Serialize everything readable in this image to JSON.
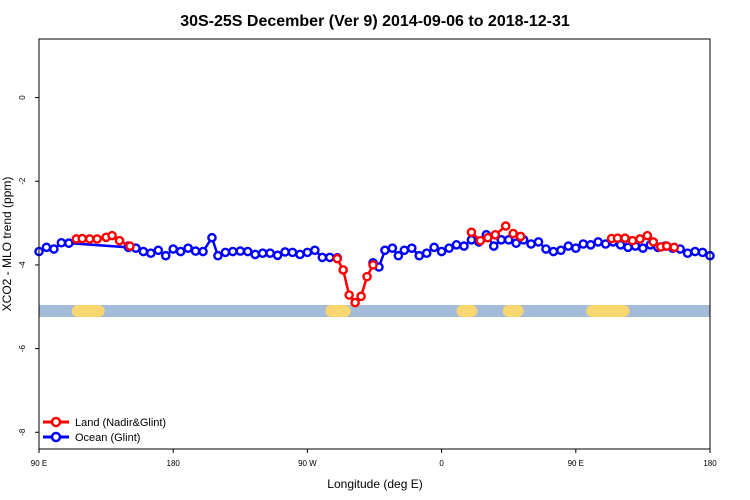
{
  "chart_data": {
    "type": "line",
    "title": "30S-25S December (Ver 9)   2014-09-06 to 2018-12-31",
    "xlabel": "Longitude (deg E)",
    "ylabel": "XCO2 - MLO trend (ppm)",
    "x_ticks": [
      {
        "value": 90,
        "label": "90 E"
      },
      {
        "value": 180,
        "label": "180"
      },
      {
        "value": 270,
        "label": "90 W"
      },
      {
        "value": 360,
        "label": "0"
      },
      {
        "value": 450,
        "label": "90 E"
      },
      {
        "value": 540,
        "label": "180"
      }
    ],
    "y_ticks": [
      {
        "value": 0,
        "label": "0"
      },
      {
        "value": -2,
        "label": "-2"
      },
      {
        "value": -4,
        "label": "-4"
      },
      {
        "value": -6,
        "label": "-6"
      },
      {
        "value": -8,
        "label": "-8"
      }
    ],
    "xlim": [
      90,
      540
    ],
    "ylim": [
      -8.4,
      1.4
    ],
    "grid": false,
    "legend_position": "bottom-left",
    "colors": {
      "land": "#ff0000",
      "ocean": "#0000ff",
      "band_ocean": "#a4bbd9",
      "band_land": "#f9d66f"
    },
    "band": {
      "y": -5.1,
      "land_segments": [
        [
          116,
          130
        ],
        [
          286,
          295
        ],
        [
          374,
          380
        ],
        [
          405,
          411
        ],
        [
          461,
          482
        ]
      ]
    },
    "series": [
      {
        "name": "Land (Nadir&Glint)",
        "segments": [
          {
            "x": [
              115,
              119,
              124,
              129,
              135,
              139,
              144,
              151
            ],
            "y": [
              -3.38,
              -3.37,
              -3.38,
              -3.38,
              -3.34,
              -3.3,
              -3.42,
              -3.55
            ]
          },
          {
            "x": [
              290,
              294,
              298,
              302,
              306,
              310,
              314
            ],
            "y": [
              -3.85,
              -4.12,
              -4.72,
              -4.9,
              -4.75,
              -4.28,
              -4.0
            ]
          },
          {
            "x": [
              380,
              386,
              391,
              396,
              403
            ],
            "y": [
              -3.22,
              -3.42,
              -3.35,
              -3.28,
              -3.07
            ]
          },
          {
            "x": [
              408,
              413
            ],
            "y": [
              -3.25,
              -3.32
            ]
          },
          {
            "x": [
              474,
              478,
              483,
              488,
              493,
              498,
              502,
              507,
              511,
              516
            ],
            "y": [
              -3.37,
              -3.36,
              -3.36,
              -3.42,
              -3.38,
              -3.3,
              -3.45,
              -3.57,
              -3.55,
              -3.58
            ]
          }
        ]
      },
      {
        "name": "Ocean (Glint)",
        "segments": [
          {
            "x": [
              90,
              95,
              100,
              105,
              110
            ],
            "y": [
              -3.68,
              -3.58,
              -3.62,
              -3.47,
              -3.48
            ]
          },
          {
            "x": [
              110,
              150
            ],
            "y": [
              -3.48,
              -3.58
            ]
          },
          {
            "x": [
              150,
              155,
              160,
              165,
              170,
              175,
              180,
              185,
              190,
              195,
              200,
              206,
              210,
              215,
              220,
              225,
              230,
              235,
              240,
              245,
              250,
              255,
              260,
              265,
              270,
              275,
              280,
              285,
              290
            ],
            "y": [
              -3.55,
              -3.6,
              -3.68,
              -3.72,
              -3.65,
              -3.78,
              -3.62,
              -3.68,
              -3.6,
              -3.67,
              -3.68,
              -3.35,
              -3.78,
              -3.7,
              -3.68,
              -3.67,
              -3.68,
              -3.75,
              -3.72,
              -3.72,
              -3.77,
              -3.69,
              -3.7,
              -3.75,
              -3.7,
              -3.65,
              -3.82,
              -3.82,
              -3.83
            ]
          },
          {
            "x": [
              314,
              318,
              322,
              327,
              331,
              335,
              340,
              345,
              350,
              355,
              360,
              365,
              370,
              375,
              380,
              385,
              390,
              395,
              400,
              405,
              410,
              415,
              420,
              425,
              430,
              435,
              440,
              445,
              450,
              455,
              460,
              465,
              470,
              475,
              480,
              485,
              490,
              495,
              500,
              505,
              510,
              515,
              520,
              525,
              530,
              535,
              540
            ],
            "y": [
              -3.95,
              -4.05,
              -3.65,
              -3.6,
              -3.78,
              -3.65,
              -3.6,
              -3.78,
              -3.72,
              -3.58,
              -3.68,
              -3.6,
              -3.52,
              -3.55,
              -3.4,
              -3.45,
              -3.28,
              -3.55,
              -3.4,
              -3.4,
              -3.48,
              -3.4,
              -3.5,
              -3.45,
              -3.62,
              -3.68,
              -3.65,
              -3.55,
              -3.6,
              -3.5,
              -3.52,
              -3.45,
              -3.5,
              -3.45,
              -3.52,
              -3.58,
              -3.55,
              -3.6,
              -3.52,
              -3.58,
              -3.55,
              -3.6,
              -3.62,
              -3.72,
              -3.68,
              -3.7,
              -3.78
            ]
          }
        ]
      }
    ]
  }
}
